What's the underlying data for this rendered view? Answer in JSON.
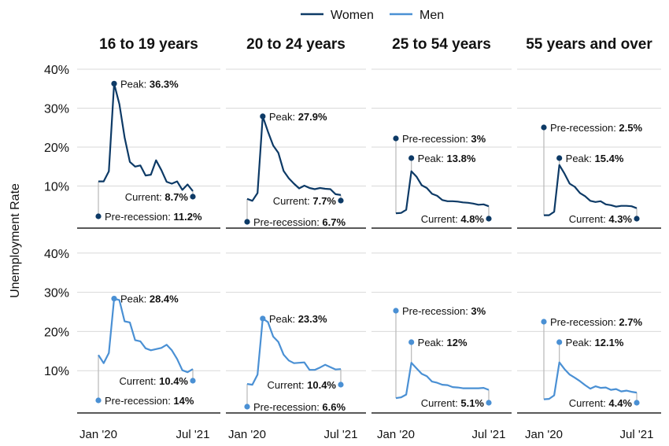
{
  "chart_data": {
    "type": "line",
    "ylabel": "Unemployment Rate",
    "ylim": [
      0,
      40
    ],
    "yticks": [
      "10%",
      "20%",
      "30%",
      "40%"
    ],
    "xtick_labels": [
      "Jan '20",
      "Jul '21"
    ],
    "legend": {
      "position": "top-center",
      "entries": [
        "Women",
        "Men"
      ]
    },
    "colors": {
      "Women": "#0d3a66",
      "Men": "#4a90d4"
    },
    "panels": [
      {
        "title": "16 to 19 years",
        "series": [
          {
            "name": "Women",
            "values": [
              11.2,
              11.2,
              13.8,
              36.3,
              31.0,
              22.5,
              16.2,
              15.0,
              15.3,
              12.7,
              12.9,
              16.6,
              14.1,
              11.1,
              10.6,
              11.2,
              9.0,
              10.4,
              8.7
            ],
            "pre_label": "Pre-recession: ",
            "pre_value": "11.2%",
            "pre": 11.2,
            "peak_label": "Peak: ",
            "peak_value": "36.3%",
            "peak": 36.3,
            "cur_label": "Current: ",
            "cur_value": "8.7%",
            "cur": 8.7
          },
          {
            "name": "Men",
            "values": [
              14.0,
              11.9,
              14.5,
              28.4,
              28.0,
              22.6,
              22.3,
              17.8,
              17.5,
              15.7,
              15.2,
              15.5,
              15.8,
              16.6,
              15.2,
              13.0,
              10.1,
              9.6,
              10.4
            ],
            "pre_label": "Pre-recession: ",
            "pre_value": "14%",
            "pre": 14.0,
            "peak_label": "Peak: ",
            "peak_value": "28.4%",
            "peak": 28.4,
            "cur_label": "Current: ",
            "cur_value": "10.4%",
            "cur": 10.4
          }
        ]
      },
      {
        "title": "20 to 24 years",
        "series": [
          {
            "name": "Women",
            "values": [
              6.7,
              6.2,
              8.2,
              27.9,
              24.0,
              20.4,
              18.5,
              13.9,
              12.0,
              10.6,
              9.4,
              10.1,
              9.5,
              9.2,
              9.5,
              9.3,
              9.2,
              7.9,
              7.7
            ],
            "pre_label": "Pre-recession: ",
            "pre_value": "6.7%",
            "pre": 6.7,
            "peak_label": "Peak: ",
            "peak_value": "27.9%",
            "peak": 27.9,
            "cur_label": "Current: ",
            "cur_value": "7.7%",
            "cur": 7.7
          },
          {
            "name": "Men",
            "values": [
              6.6,
              6.4,
              9.0,
              23.3,
              22.4,
              18.7,
              17.3,
              14.1,
              12.6,
              11.9,
              12.0,
              12.1,
              10.2,
              10.2,
              10.8,
              11.5,
              10.9,
              10.3,
              10.4
            ],
            "pre_label": "Pre-recession: ",
            "pre_value": "6.6%",
            "pre": 6.6,
            "peak_label": "Peak: ",
            "peak_value": "23.3%",
            "peak": 23.3,
            "cur_label": "Current: ",
            "cur_value": "10.4%",
            "cur": 10.4
          }
        ]
      },
      {
        "title": "25 to 54 years",
        "series": [
          {
            "name": "Women",
            "values": [
              3.0,
              3.1,
              3.9,
              13.8,
              12.4,
              10.2,
              9.5,
              8.0,
              7.5,
              6.4,
              6.1,
              6.1,
              6.0,
              5.8,
              5.7,
              5.5,
              5.2,
              5.3,
              4.8
            ],
            "pre_label": "Pre-recession: ",
            "pre_value": "3%",
            "pre": 3.0,
            "peak_label": "Peak: ",
            "peak_value": "13.8%",
            "peak": 13.8,
            "cur_label": "Current: ",
            "cur_value": "4.8%",
            "cur": 4.8
          },
          {
            "name": "Men",
            "values": [
              3.0,
              3.2,
              3.9,
              12.0,
              10.6,
              9.2,
              8.6,
              7.2,
              6.9,
              6.4,
              6.3,
              5.8,
              5.7,
              5.5,
              5.5,
              5.5,
              5.5,
              5.6,
              5.1
            ],
            "pre_label": "Pre-recession: ",
            "pre_value": "3%",
            "pre": 3.0,
            "peak_label": "Peak: ",
            "peak_value": "12%",
            "peak": 12.0,
            "cur_label": "Current: ",
            "cur_value": "5.1%",
            "cur": 5.1
          }
        ]
      },
      {
        "title": "55 years and over",
        "series": [
          {
            "name": "Women",
            "values": [
              2.5,
              2.5,
              3.4,
              15.4,
              13.2,
              10.6,
              9.8,
              8.2,
              7.4,
              6.2,
              5.9,
              6.1,
              5.3,
              5.1,
              4.7,
              4.9,
              4.9,
              4.8,
              4.3
            ],
            "pre_label": "Pre-recession: ",
            "pre_value": "2.5%",
            "pre": 2.5,
            "peak_label": "Peak: ",
            "peak_value": "15.4%",
            "peak": 15.4,
            "cur_label": "Current: ",
            "cur_value": "4.3%",
            "cur": 4.3
          },
          {
            "name": "Men",
            "values": [
              2.7,
              2.8,
              3.7,
              12.1,
              10.4,
              9.0,
              8.2,
              7.3,
              6.3,
              5.4,
              6.0,
              5.6,
              5.7,
              5.1,
              5.3,
              4.7,
              4.9,
              4.6,
              4.4
            ],
            "pre_label": "Pre-recession: ",
            "pre_value": "2.7%",
            "pre": 2.7,
            "peak_label": "Peak: ",
            "peak_value": "12.1%",
            "peak": 12.1,
            "cur_label": "Current: ",
            "cur_value": "4.4%",
            "cur": 4.4
          }
        ]
      }
    ]
  }
}
